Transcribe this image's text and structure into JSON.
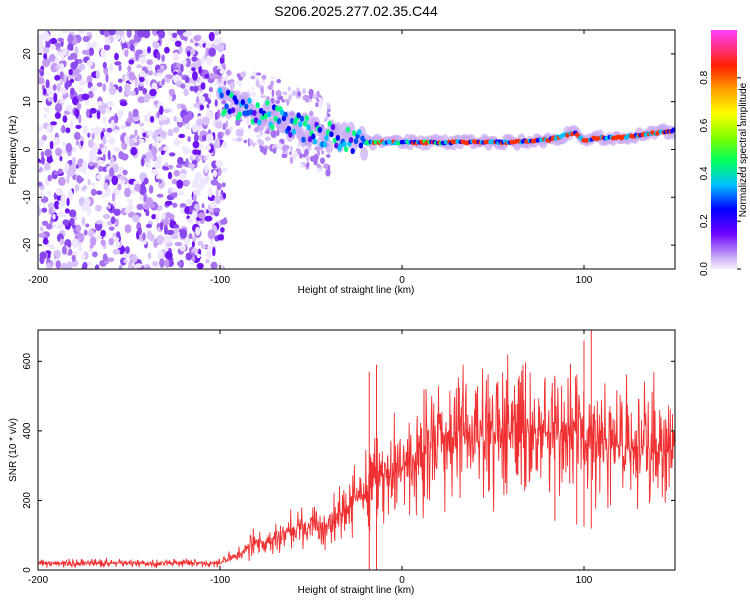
{
  "title": "S206.2025.277.02.35.C44",
  "chart_data": [
    {
      "type": "heatmap",
      "name": "spectrogram",
      "xlabel": "Height of straight line (km)",
      "ylabel": "Frequency (Hz)",
      "xlim": [
        -200,
        150
      ],
      "ylim": [
        -25,
        25
      ],
      "xticks": [
        -200,
        -100,
        0,
        100
      ],
      "xtick_labels": [
        "-200",
        "-100",
        "0",
        "100"
      ],
      "yticks": [
        -20,
        -10,
        0,
        10,
        20
      ],
      "ytick_labels": [
        "-20",
        "-10",
        "0",
        "10",
        "20"
      ],
      "noise_region_x": [
        -200,
        -97
      ],
      "signal_ridge": {
        "x": [
          -100,
          -90,
          -80,
          -70,
          -60,
          -50,
          -40,
          -30,
          -20,
          -10,
          0,
          20,
          40,
          60,
          80,
          90,
          95,
          100,
          110,
          120,
          130,
          140,
          150
        ],
        "freq_hz": [
          10,
          9,
          8,
          7,
          5,
          4,
          3,
          2,
          1.5,
          1.5,
          1.5,
          1.5,
          1.5,
          1.5,
          2,
          3,
          3.5,
          2,
          2.5,
          2.5,
          3,
          3.5,
          4
        ]
      },
      "colorbar": {
        "label": "Normalized spectral amplitude",
        "range": [
          0.0,
          1.0
        ],
        "ticks": [
          0.0,
          0.2,
          0.4,
          0.6,
          0.8
        ],
        "tick_labels": [
          "0.0",
          "0.2",
          "0.4",
          "0.6",
          "0.8"
        ]
      }
    },
    {
      "type": "line",
      "name": "snr",
      "xlabel": "Height of straight line (km)",
      "ylabel": "SNR (10 * v/v)",
      "xlim": [
        -200,
        150
      ],
      "ylim": [
        0,
        690
      ],
      "xticks": [
        -200,
        -100,
        0,
        100
      ],
      "xtick_labels": [
        "-200",
        "-100",
        "0",
        "100"
      ],
      "yticks": [
        0,
        200,
        400,
        600
      ],
      "ytick_labels": [
        "0",
        "200",
        "400",
        "600"
      ],
      "series": [
        {
          "name": "SNR",
          "color": "#f03030",
          "trend_x": [
            -200,
            -100,
            -90,
            -80,
            -60,
            -40,
            -30,
            -20,
            -10,
            0,
            10,
            20,
            30,
            50,
            70,
            90,
            110,
            130,
            150
          ],
          "trend_y": [
            20,
            20,
            45,
            80,
            110,
            130,
            180,
            230,
            260,
            290,
            330,
            360,
            380,
            390,
            395,
            390,
            360,
            355,
            350
          ],
          "spikes_x": [
            -18,
            -14,
            84,
            96,
            100,
            104
          ],
          "spikes_y": [
            570,
            590,
            550,
            420,
            660,
            690
          ]
        }
      ]
    }
  ]
}
